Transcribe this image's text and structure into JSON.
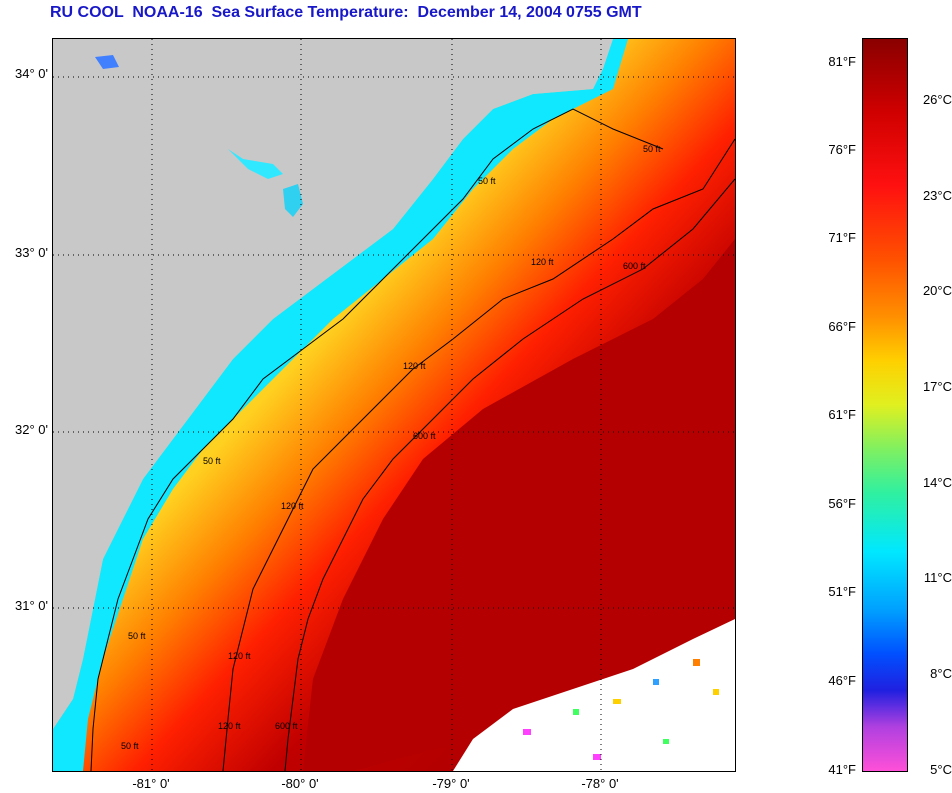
{
  "title": "RU COOL  NOAA-16  Sea Surface Temperature:  December 14, 2004 0755 GMT",
  "latitude_labels": [
    "34° 0'",
    "33° 0'",
    "32° 0'",
    "31° 0'"
  ],
  "longitude_labels": [
    "-81° 0'",
    "-80° 0'",
    "-79° 0'",
    "-78° 0'"
  ],
  "contour_labels": {
    "c50": "50 ft",
    "c120": "120 ft",
    "c600": "600 ft"
  },
  "colorbar": {
    "fahrenheit": [
      "81°F",
      "76°F",
      "71°F",
      "66°F",
      "61°F",
      "56°F",
      "51°F",
      "46°F",
      "41°F"
    ],
    "celsius": [
      "26°C",
      "23°C",
      "20°C",
      "17°C",
      "14°C",
      "11°C",
      "8°C",
      "5°C"
    ]
  },
  "colors": {
    "land": "#c8c8c8",
    "title": "#1818c8",
    "cold_coastal": "#00e8ff",
    "warm_gulf_stream": "#b00000",
    "clouds": "#ffffff"
  }
}
